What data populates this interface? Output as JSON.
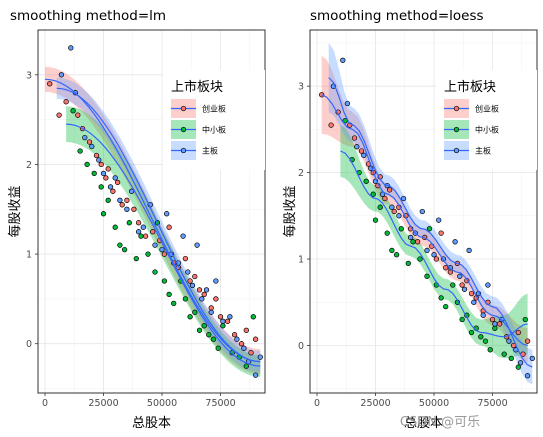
{
  "chart_data": [
    {
      "type": "scatter",
      "title": "smoothing method=lm",
      "xlabel": "总股本",
      "ylabel": "每股收益",
      "xlim": [
        -3000,
        94000
      ],
      "ylim": [
        -0.55,
        3.5
      ],
      "xticks": [
        0,
        25000,
        50000,
        75000
      ],
      "xtick_labels": [
        "0",
        "25000",
        "50000",
        "75000"
      ],
      "yticks": [
        0,
        1,
        2,
        3
      ],
      "ytick_labels": [
        "0",
        "1",
        "2",
        "3"
      ],
      "grid": true,
      "legend": {
        "title": "上市板块",
        "placement": "right-inside-top",
        "entries": [
          {
            "label": "创业板",
            "color": "#F8766D"
          },
          {
            "label": "中小板",
            "color": "#00BA38"
          },
          {
            "label": "主板",
            "color": "#619CFF"
          }
        ]
      },
      "series": [
        {
          "name": "创业板",
          "color": "#F8766D",
          "points": [
            [
              2000,
              2.9
            ],
            [
              6000,
              2.55
            ],
            [
              9000,
              2.7
            ],
            [
              14000,
              2.55
            ],
            [
              16000,
              2.4
            ],
            [
              19000,
              2.25
            ],
            [
              22000,
              2.1
            ],
            [
              24000,
              2.0
            ],
            [
              26000,
              1.85
            ],
            [
              27000,
              1.95
            ],
            [
              29000,
              1.7
            ],
            [
              31000,
              1.8
            ],
            [
              33000,
              1.55
            ],
            [
              35000,
              1.6
            ],
            [
              38000,
              1.5
            ],
            [
              40000,
              1.35
            ],
            [
              43000,
              1.2
            ],
            [
              46000,
              1.25
            ],
            [
              49000,
              1.15
            ],
            [
              51000,
              1.0
            ],
            [
              53000,
              1.3
            ],
            [
              55000,
              0.9
            ],
            [
              57000,
              0.85
            ],
            [
              60000,
              0.95
            ],
            [
              62000,
              0.7
            ],
            [
              64000,
              0.75
            ],
            [
              66000,
              0.6
            ],
            [
              68000,
              0.55
            ],
            [
              71000,
              0.4
            ],
            [
              73000,
              0.5
            ],
            [
              75000,
              0.3
            ],
            [
              78000,
              0.25
            ],
            [
              81000,
              0.1
            ],
            [
              84000,
              0.0
            ],
            [
              86000,
              0.15
            ],
            [
              88000,
              -0.1
            ],
            [
              90000,
              0.05
            ]
          ]
        },
        {
          "name": "中小板",
          "color": "#00BA38",
          "points": [
            [
              12000,
              2.6
            ],
            [
              15000,
              2.15
            ],
            [
              18000,
              2.0
            ],
            [
              21000,
              1.9
            ],
            [
              24000,
              1.75
            ],
            [
              25000,
              1.45
            ],
            [
              27000,
              1.6
            ],
            [
              30000,
              1.3
            ],
            [
              32000,
              1.1
            ],
            [
              34000,
              1.05
            ],
            [
              36000,
              1.35
            ],
            [
              39000,
              0.95
            ],
            [
              41000,
              1.2
            ],
            [
              44000,
              1.0
            ],
            [
              47000,
              0.8
            ],
            [
              48000,
              1.35
            ],
            [
              51000,
              0.7
            ],
            [
              53000,
              0.55
            ],
            [
              55000,
              0.45
            ],
            [
              58000,
              0.7
            ],
            [
              60000,
              0.5
            ],
            [
              62000,
              0.3
            ],
            [
              64000,
              0.35
            ],
            [
              66000,
              0.15
            ],
            [
              68000,
              0.2
            ],
            [
              70000,
              0.1
            ],
            [
              72000,
              0.05
            ],
            [
              74000,
              -0.05
            ],
            [
              76000,
              0.2
            ],
            [
              80000,
              -0.1
            ],
            [
              83000,
              -0.15
            ],
            [
              86000,
              -0.25
            ],
            [
              89000,
              0.3
            ]
          ]
        },
        {
          "name": "主板",
          "color": "#619CFF",
          "points": [
            [
              7000,
              3.0
            ],
            [
              11000,
              3.3
            ],
            [
              13000,
              2.8
            ],
            [
              17000,
              2.3
            ],
            [
              20000,
              2.2
            ],
            [
              23000,
              2.05
            ],
            [
              25000,
              1.9
            ],
            [
              28000,
              1.75
            ],
            [
              30000,
              1.85
            ],
            [
              32000,
              1.6
            ],
            [
              35000,
              1.5
            ],
            [
              37000,
              1.7
            ],
            [
              40000,
              1.25
            ],
            [
              42000,
              1.3
            ],
            [
              45000,
              1.55
            ],
            [
              47000,
              1.1
            ],
            [
              50000,
              1.05
            ],
            [
              52000,
              1.45
            ],
            [
              54000,
              1.0
            ],
            [
              57000,
              0.9
            ],
            [
              59000,
              1.2
            ],
            [
              61000,
              0.8
            ],
            [
              63000,
              0.65
            ],
            [
              65000,
              1.1
            ],
            [
              67000,
              0.5
            ],
            [
              69000,
              0.6
            ],
            [
              71000,
              0.35
            ],
            [
              73000,
              0.7
            ],
            [
              76000,
              0.25
            ],
            [
              79000,
              0.3
            ],
            [
              82000,
              0.05
            ],
            [
              85000,
              -0.05
            ],
            [
              87000,
              -0.2
            ],
            [
              90000,
              -0.35
            ],
            [
              92000,
              -0.15
            ]
          ]
        }
      ],
      "smooth_method": "lm",
      "smooth_fits": [
        {
          "name": "创业板",
          "color": "#F8766D",
          "x": [
            0,
            92000
          ],
          "y": [
            2.95,
            -0.2
          ],
          "se": [
            0.14,
            0.14
          ]
        },
        {
          "name": "中小板",
          "color": "#00BA38",
          "x": [
            9000,
            92000
          ],
          "y": [
            2.45,
            -0.25
          ],
          "se": [
            0.2,
            0.12
          ]
        },
        {
          "name": "主板",
          "color": "#619CFF",
          "x": [
            5000,
            92000
          ],
          "y": [
            2.85,
            -0.2
          ],
          "se": [
            0.12,
            0.12
          ]
        }
      ]
    },
    {
      "type": "scatter",
      "title": "smoothing method=loess",
      "xlabel": "总股本",
      "ylabel": "每股收益",
      "xlim": [
        -3000,
        94000
      ],
      "ylim": [
        -0.55,
        3.65
      ],
      "xticks": [
        0,
        25000,
        50000,
        75000
      ],
      "xtick_labels": [
        "0",
        "25000",
        "50000",
        "75000"
      ],
      "yticks": [
        0,
        1,
        2,
        3
      ],
      "ytick_labels": [
        "0",
        "1",
        "2",
        "3"
      ],
      "grid": true,
      "legend": {
        "title": "上市板块",
        "placement": "right-inside-top",
        "entries": [
          {
            "label": "创业板",
            "color": "#F8766D"
          },
          {
            "label": "中小板",
            "color": "#00BA38"
          },
          {
            "label": "主板",
            "color": "#619CFF"
          }
        ]
      },
      "series": [
        {
          "name": "创业板",
          "color": "#F8766D",
          "points": [
            [
              2000,
              2.9
            ],
            [
              6000,
              2.55
            ],
            [
              9000,
              2.7
            ],
            [
              14000,
              2.55
            ],
            [
              16000,
              2.4
            ],
            [
              19000,
              2.25
            ],
            [
              22000,
              2.1
            ],
            [
              24000,
              2.0
            ],
            [
              26000,
              1.85
            ],
            [
              27000,
              1.95
            ],
            [
              29000,
              1.7
            ],
            [
              31000,
              1.8
            ],
            [
              33000,
              1.55
            ],
            [
              35000,
              1.6
            ],
            [
              38000,
              1.5
            ],
            [
              40000,
              1.35
            ],
            [
              43000,
              1.2
            ],
            [
              46000,
              1.25
            ],
            [
              49000,
              1.15
            ],
            [
              51000,
              1.0
            ],
            [
              53000,
              1.3
            ],
            [
              55000,
              0.9
            ],
            [
              57000,
              0.85
            ],
            [
              60000,
              0.95
            ],
            [
              62000,
              0.7
            ],
            [
              64000,
              0.75
            ],
            [
              66000,
              0.6
            ],
            [
              68000,
              0.55
            ],
            [
              71000,
              0.4
            ],
            [
              73000,
              0.5
            ],
            [
              75000,
              0.3
            ],
            [
              78000,
              0.25
            ],
            [
              81000,
              0.1
            ],
            [
              84000,
              0.0
            ],
            [
              86000,
              0.15
            ],
            [
              88000,
              -0.1
            ],
            [
              90000,
              0.05
            ]
          ]
        },
        {
          "name": "中小板",
          "color": "#00BA38",
          "points": [
            [
              12000,
              2.6
            ],
            [
              15000,
              2.15
            ],
            [
              18000,
              2.0
            ],
            [
              21000,
              1.9
            ],
            [
              24000,
              1.75
            ],
            [
              25000,
              1.45
            ],
            [
              27000,
              1.6
            ],
            [
              30000,
              1.3
            ],
            [
              32000,
              1.1
            ],
            [
              34000,
              1.05
            ],
            [
              36000,
              1.35
            ],
            [
              39000,
              0.95
            ],
            [
              41000,
              1.2
            ],
            [
              44000,
              1.0
            ],
            [
              47000,
              0.8
            ],
            [
              48000,
              1.35
            ],
            [
              51000,
              0.7
            ],
            [
              53000,
              0.55
            ],
            [
              55000,
              0.45
            ],
            [
              58000,
              0.7
            ],
            [
              60000,
              0.5
            ],
            [
              62000,
              0.3
            ],
            [
              64000,
              0.35
            ],
            [
              66000,
              0.15
            ],
            [
              68000,
              0.2
            ],
            [
              70000,
              0.1
            ],
            [
              72000,
              0.05
            ],
            [
              74000,
              -0.05
            ],
            [
              76000,
              0.2
            ],
            [
              80000,
              -0.1
            ],
            [
              83000,
              -0.15
            ],
            [
              86000,
              -0.25
            ],
            [
              89000,
              0.3
            ]
          ]
        },
        {
          "name": "主板",
          "color": "#619CFF",
          "points": [
            [
              7000,
              3.0
            ],
            [
              11000,
              3.3
            ],
            [
              13000,
              2.8
            ],
            [
              17000,
              2.3
            ],
            [
              20000,
              2.2
            ],
            [
              23000,
              2.05
            ],
            [
              25000,
              1.9
            ],
            [
              28000,
              1.75
            ],
            [
              30000,
              1.85
            ],
            [
              32000,
              1.6
            ],
            [
              35000,
              1.5
            ],
            [
              37000,
              1.7
            ],
            [
              40000,
              1.25
            ],
            [
              42000,
              1.3
            ],
            [
              45000,
              1.55
            ],
            [
              47000,
              1.1
            ],
            [
              50000,
              1.05
            ],
            [
              52000,
              1.45
            ],
            [
              54000,
              1.0
            ],
            [
              57000,
              0.9
            ],
            [
              59000,
              1.2
            ],
            [
              61000,
              0.8
            ],
            [
              63000,
              0.65
            ],
            [
              65000,
              1.1
            ],
            [
              67000,
              0.5
            ],
            [
              69000,
              0.6
            ],
            [
              71000,
              0.35
            ],
            [
              73000,
              0.7
            ],
            [
              76000,
              0.25
            ],
            [
              79000,
              0.3
            ],
            [
              82000,
              0.05
            ],
            [
              85000,
              -0.05
            ],
            [
              87000,
              -0.2
            ],
            [
              90000,
              -0.35
            ],
            [
              92000,
              -0.15
            ]
          ]
        }
      ],
      "smooth_method": "loess",
      "smooth_fits": [
        {
          "name": "创业板",
          "color": "#F8766D",
          "x": [
            2000,
            15000,
            30000,
            45000,
            60000,
            75000,
            90000
          ],
          "y": [
            2.9,
            2.5,
            1.75,
            1.25,
            0.85,
            0.35,
            0.0
          ],
          "se": [
            0.45,
            0.2,
            0.12,
            0.1,
            0.1,
            0.12,
            0.2
          ]
        },
        {
          "name": "中小板",
          "color": "#00BA38",
          "x": [
            10000,
            25000,
            40000,
            55000,
            70000,
            80000,
            90000
          ],
          "y": [
            2.25,
            1.7,
            1.15,
            0.65,
            0.15,
            0.1,
            0.25
          ],
          "se": [
            0.3,
            0.15,
            0.12,
            0.12,
            0.15,
            0.25,
            0.35
          ]
        },
        {
          "name": "主板",
          "color": "#619CFF",
          "x": [
            5000,
            15000,
            30000,
            45000,
            60000,
            75000,
            92000
          ],
          "y": [
            3.1,
            2.55,
            1.85,
            1.35,
            0.95,
            0.45,
            -0.25
          ],
          "se": [
            0.4,
            0.2,
            0.12,
            0.1,
            0.1,
            0.12,
            0.2
          ]
        }
      ]
    }
  ],
  "watermark": "CSDN @可乐"
}
